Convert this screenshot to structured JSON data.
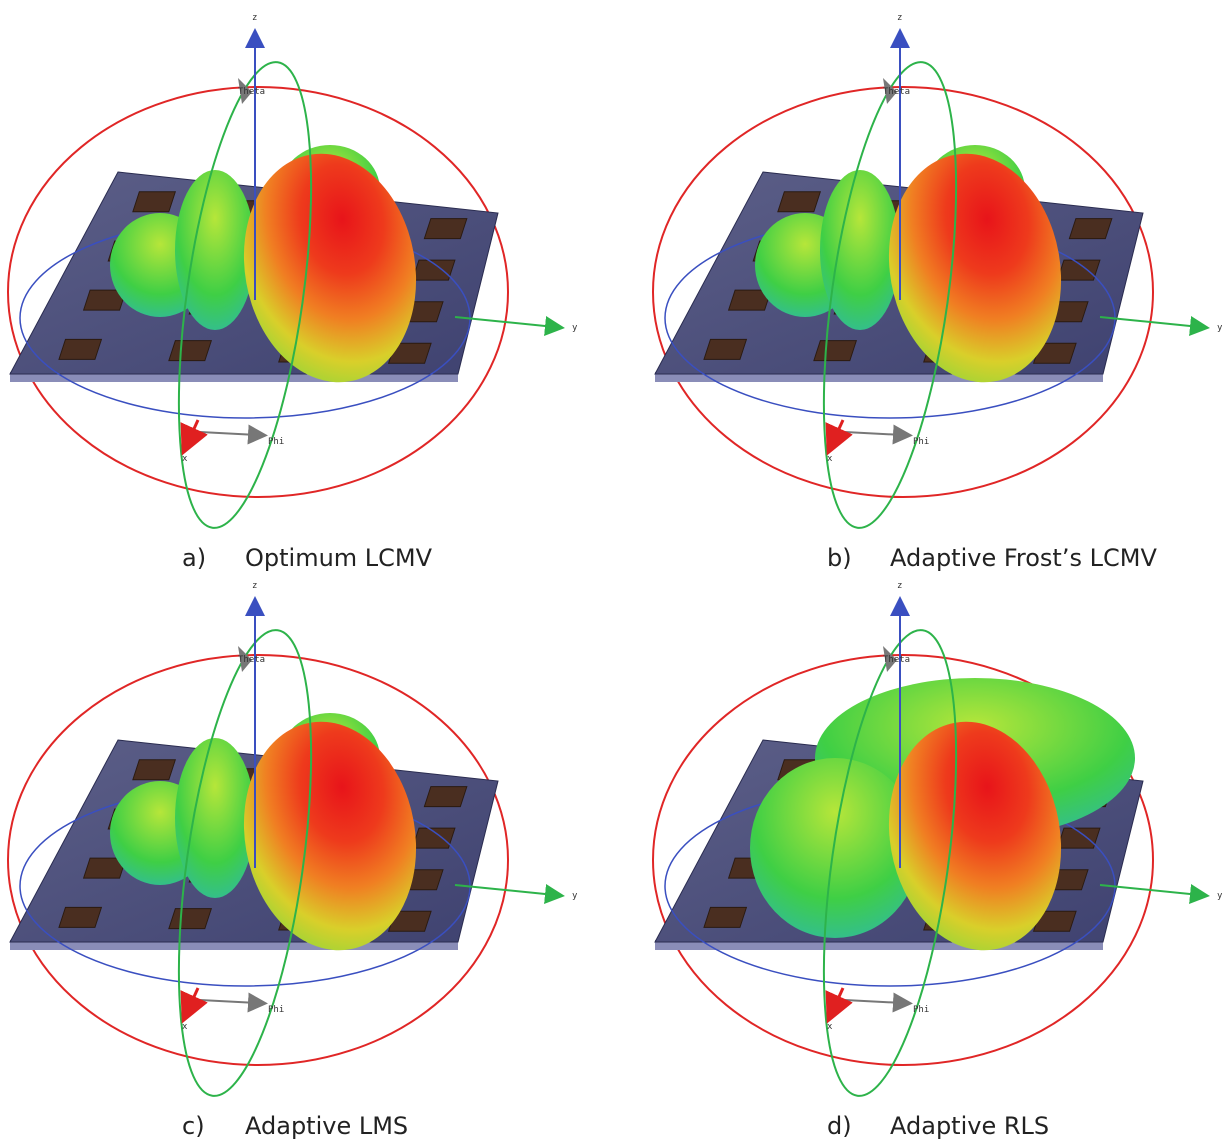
{
  "panels": [
    {
      "label": "a)",
      "caption": "Optimum LCMV",
      "axes": {
        "z": "z",
        "y": "y",
        "x": "x",
        "theta": "Theta",
        "phi": "Phi"
      }
    },
    {
      "label": "b)",
      "caption": "Adaptive Frost’s LCMV",
      "axes": {
        "z": "z",
        "y": "y",
        "x": "x",
        "theta": "Theta",
        "phi": "Phi"
      }
    },
    {
      "label": "c)",
      "caption": "Adaptive LMS",
      "axes": {
        "z": "z",
        "y": "y",
        "x": "x",
        "theta": "Theta",
        "phi": "Phi"
      }
    },
    {
      "label": "d)",
      "caption": "Adaptive RLS",
      "axes": {
        "z": "z",
        "y": "y",
        "x": "x",
        "theta": "Theta",
        "phi": "Phi"
      }
    }
  ]
}
